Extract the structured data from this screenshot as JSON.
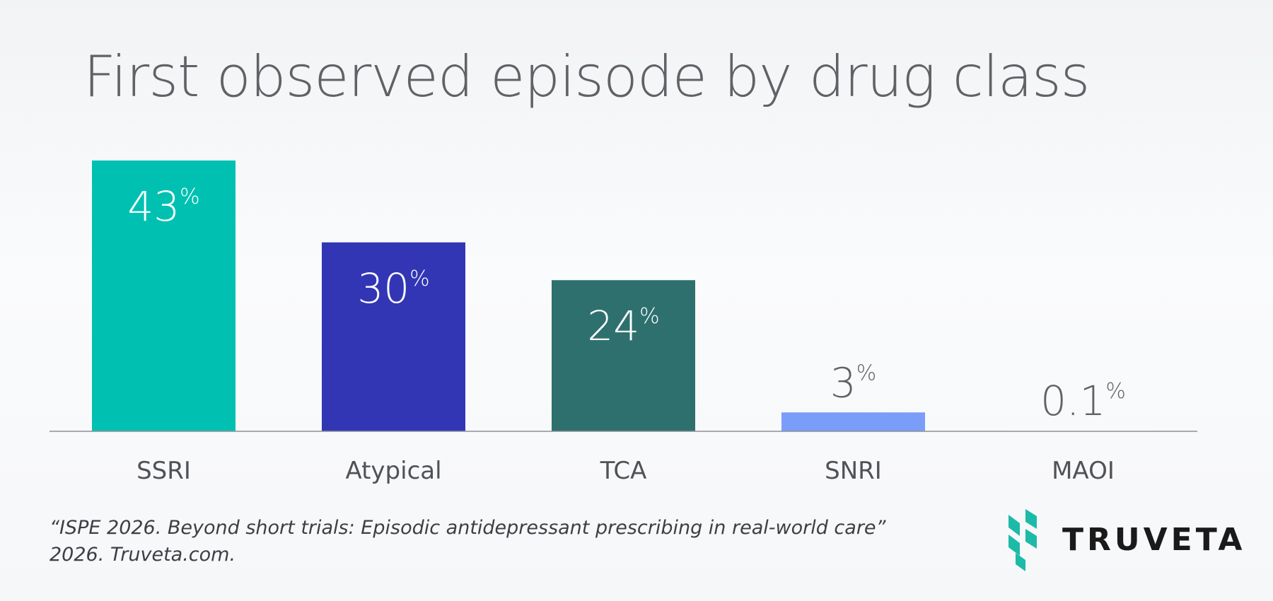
{
  "brand": {
    "name": "TRUVETA",
    "colors": {
      "title": "#606266",
      "accent": "#1dbaa8"
    }
  },
  "source": {
    "line1": "“ISPE 2026. Beyond short trials: Episodic antidepressant prescribing in real-world care”",
    "line2": "2026. Truveta.com."
  },
  "chart_data": {
    "type": "bar",
    "title": "First observed episode by drug class",
    "xlabel": "",
    "ylabel": "",
    "categories": [
      "SSRI",
      "Atypical",
      "TCA",
      "SNRI",
      "MAOI"
    ],
    "values": [
      43,
      30,
      24,
      3,
      0.1
    ],
    "value_labels": [
      "43",
      "30",
      "24",
      "3",
      "0.1"
    ],
    "unit": "%",
    "colors": [
      "#00c1b1",
      "#3236b5",
      "#2e706e",
      "#7b9dfa",
      "#ffffff"
    ],
    "ylim": [
      0,
      43
    ],
    "grid": false,
    "legend": "none"
  }
}
